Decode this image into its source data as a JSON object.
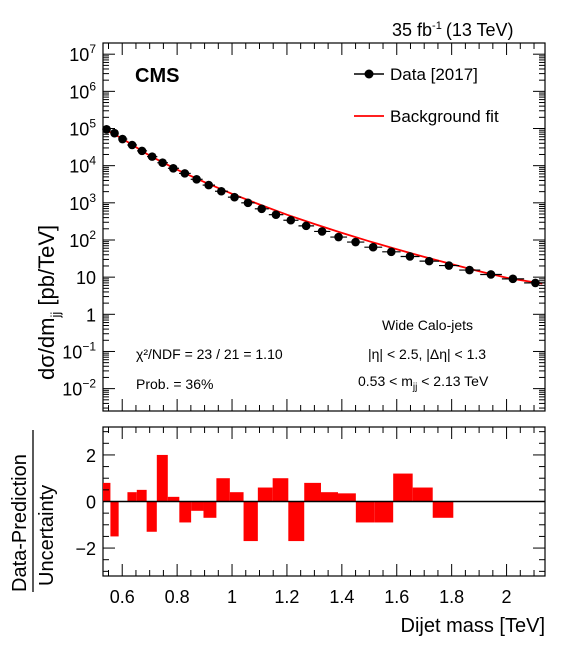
{
  "header": {
    "lumi": "35 fb",
    "lumi_exp": "-1",
    "energy": "(13 TeV)"
  },
  "chart_data": [
    {
      "type": "scatter",
      "panel": "spectrum",
      "ylabel": "dσ/dm",
      "ylabel_sub": "jj",
      "ylabel_units": " [pb/TeV]",
      "yscale": "log",
      "ylim": [
        0.0025,
        20000000
      ],
      "xlim": [
        0.53,
        2.14
      ],
      "y_ticks": [
        {
          "v": 10000000,
          "base": "10",
          "exp": "7"
        },
        {
          "v": 1000000,
          "base": "10",
          "exp": "6"
        },
        {
          "v": 100000,
          "base": "10",
          "exp": "5"
        },
        {
          "v": 10000,
          "base": "10",
          "exp": "4"
        },
        {
          "v": 1000,
          "base": "10",
          "exp": "3"
        },
        {
          "v": 100,
          "base": "10",
          "exp": "2"
        },
        {
          "v": 10,
          "base": "10",
          "exp": ""
        },
        {
          "v": 1,
          "base": "1",
          "exp": ""
        },
        {
          "v": 0.1,
          "base": "10",
          "exp": "−1"
        },
        {
          "v": 0.01,
          "base": "10",
          "exp": "−2"
        }
      ],
      "grid": false,
      "legend_position": "top-right",
      "experiment_label": "CMS",
      "series": [
        {
          "name": "Data [2017]",
          "marker": "circle",
          "color": "#000000",
          "x": [
            0.543,
            0.572,
            0.601,
            0.636,
            0.672,
            0.709,
            0.747,
            0.786,
            0.828,
            0.871,
            0.915,
            0.961,
            1.009,
            1.058,
            1.108,
            1.16,
            1.214,
            1.27,
            1.328,
            1.388,
            1.45,
            1.514,
            1.58,
            1.648,
            1.718,
            1.79,
            1.865,
            1.943,
            2.023,
            2.105
          ],
          "y": [
            95000,
            75000,
            52000,
            36000,
            25000,
            17500,
            12000,
            8500,
            6200,
            4300,
            3000,
            2050,
            1420,
            1000,
            690,
            480,
            340,
            240,
            170,
            120,
            88,
            64,
            48,
            36,
            27,
            20.5,
            15.5,
            11.8,
            9.0,
            7.0
          ]
        },
        {
          "name": "Background fit",
          "line": true,
          "color": "#ff0000",
          "x": [
            0.53,
            0.6,
            0.7,
            0.8,
            0.9,
            1.0,
            1.1,
            1.2,
            1.3,
            1.4,
            1.5,
            1.6,
            1.7,
            1.8,
            1.9,
            2.0,
            2.13
          ],
          "y": [
            100000,
            54000,
            18500,
            7800,
            3600,
            1750,
            900,
            480,
            270,
            155,
            92,
            56,
            35,
            22.5,
            14.5,
            9.6,
            6.7
          ]
        }
      ],
      "annotations": {
        "chi2": "χ²/NDF = 23 / 21 = 1.10",
        "prob": "Prob. = 36%",
        "jets": "Wide Calo-jets",
        "eta_cut": "|η| < 2.5, |Δη| < 1.3",
        "mass_cut_left": "0.53 < m",
        "mass_cut_sub": "jj",
        "mass_cut_right": " < 2.13 TeV"
      }
    },
    {
      "type": "bar",
      "panel": "pull",
      "ylabel_top": "Data-Prediction",
      "ylabel_bottom": "Uncertainty",
      "xlabel": "Dijet mass [TeV]",
      "ylim": [
        -3.2,
        3.2
      ],
      "xlim": [
        0.53,
        2.14
      ],
      "y_ticks": [
        "2",
        "0",
        "−2"
      ],
      "y_tick_values": [
        2,
        0,
        -2
      ],
      "x_ticks": [
        "0.6",
        "0.8",
        "1",
        "1.2",
        "1.4",
        "1.6",
        "1.8",
        "2"
      ],
      "x_tick_values": [
        0.6,
        0.8,
        1.0,
        1.2,
        1.4,
        1.6,
        1.8,
        2.0
      ],
      "bar_color": "#ff0000",
      "bin_edges": [
        0.53,
        0.557,
        0.587,
        0.619,
        0.653,
        0.689,
        0.726,
        0.766,
        0.808,
        0.851,
        0.896,
        0.943,
        0.992,
        1.042,
        1.094,
        1.148,
        1.205,
        1.263,
        1.324,
        1.386,
        1.451,
        1.518,
        1.587,
        1.658,
        1.731,
        1.806,
        1.884,
        1.963,
        2.045,
        2.13
      ],
      "values": [
        0.8,
        -1.5,
        0,
        0.4,
        0.5,
        -1.3,
        2.0,
        0.2,
        -0.9,
        -0.4,
        -0.7,
        1.0,
        0.4,
        -1.7,
        0.6,
        1.0,
        -1.7,
        0.8,
        0.4,
        0.35,
        -0.9,
        -0.9,
        1.2,
        0.6,
        -0.7,
        0,
        0,
        0,
        0
      ]
    }
  ]
}
